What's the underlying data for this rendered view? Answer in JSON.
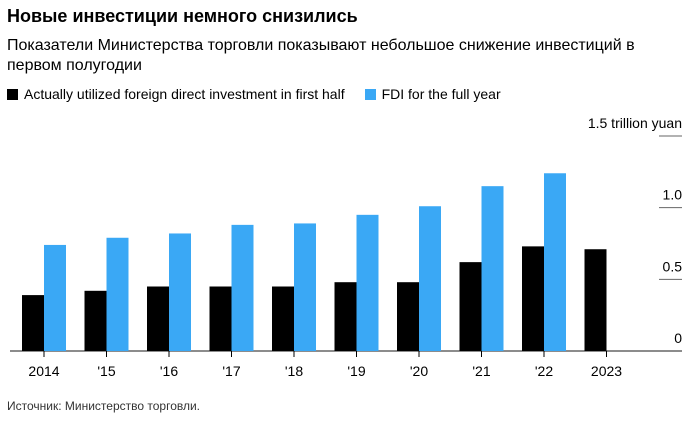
{
  "title": "Новые инвестиции немного снизились",
  "subtitle": "Показатели Министерства торговли показывают небольшое снижение инвестиций в первом полугодии",
  "source": "Источник: Министерство торговли.",
  "colors": {
    "first_half": "#000000",
    "full_year": "#3aa8f5"
  },
  "chart_data": {
    "type": "bar",
    "categories": [
      "2014",
      "'15",
      "'16",
      "'17",
      "'18",
      "'19",
      "'20",
      "'21",
      "'22",
      "2023"
    ],
    "series": [
      {
        "name": "Actually utilized foreign direct investment in first half",
        "values": [
          0.39,
          0.42,
          0.45,
          0.45,
          0.45,
          0.48,
          0.48,
          0.62,
          0.73,
          0.71
        ]
      },
      {
        "name": "FDI for the full year",
        "values": [
          0.74,
          0.79,
          0.82,
          0.88,
          0.89,
          0.95,
          1.01,
          1.15,
          1.24,
          null
        ]
      }
    ],
    "ylim": [
      0,
      1.5
    ],
    "yticks": [
      {
        "v": 0,
        "label": "0"
      },
      {
        "v": 0.5,
        "label": "0.5"
      },
      {
        "v": 1.0,
        "label": "1.0"
      },
      {
        "v": 1.5,
        "label": "1.5 trillion yuan"
      }
    ],
    "ylabel": "trillion yuan",
    "legend": "top-left"
  }
}
